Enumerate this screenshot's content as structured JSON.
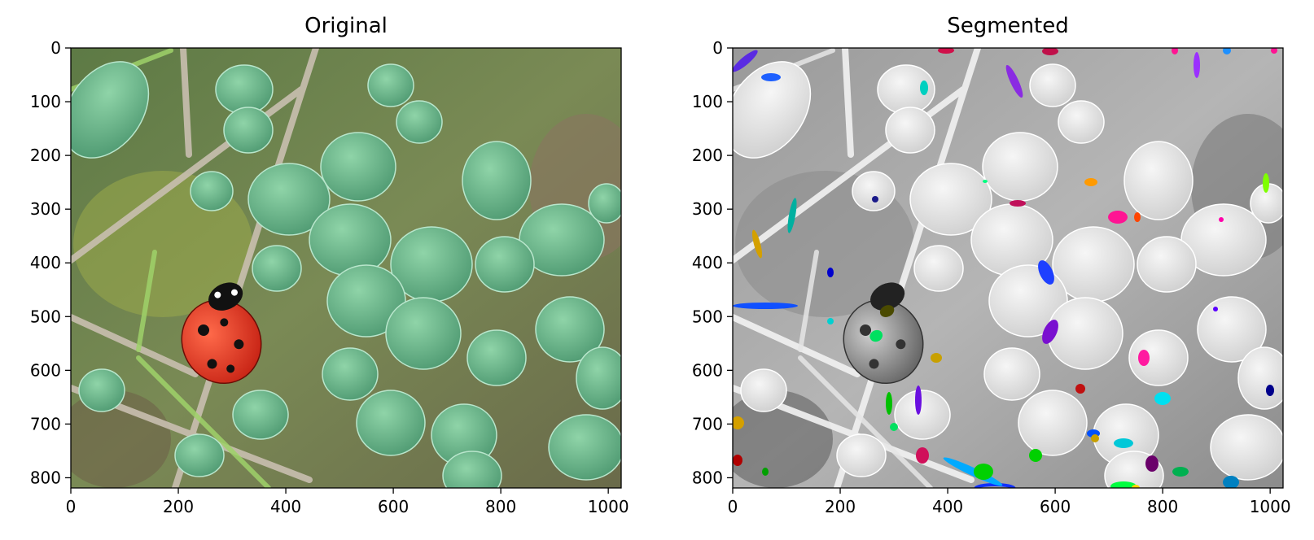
{
  "chart_data": [
    {
      "type": "image",
      "title": "Original",
      "xlabel": "",
      "ylabel": "",
      "xlim": [
        0,
        1024
      ],
      "ylim": [
        819,
        0
      ],
      "xticks": [
        0,
        200,
        400,
        600,
        800,
        1000
      ],
      "yticks": [
        0,
        100,
        200,
        300,
        400,
        500,
        600,
        700,
        800
      ],
      "xtick_labels": [
        "0",
        "200",
        "400",
        "600",
        "800",
        "1000"
      ],
      "ytick_labels": [
        "0",
        "100",
        "200",
        "300",
        "400",
        "500",
        "600",
        "700",
        "800"
      ],
      "content": "color photo of a red ladybug on a twig among green clover leaves",
      "grid": false
    },
    {
      "type": "image",
      "title": "Segmented",
      "xlabel": "",
      "ylabel": "",
      "xlim": [
        0,
        1024
      ],
      "ylim": [
        819,
        0
      ],
      "xticks": [
        0,
        200,
        400,
        600,
        800,
        1000
      ],
      "yticks": [
        0,
        100,
        200,
        300,
        400,
        500,
        600,
        700,
        800
      ],
      "xtick_labels": [
        "0",
        "200",
        "400",
        "600",
        "800",
        "1000"
      ],
      "ytick_labels": [
        "0",
        "100",
        "200",
        "300",
        "400",
        "500",
        "600",
        "700",
        "800"
      ],
      "content": "grayscale version of the photo with small segmented regions overlaid in random bright colors",
      "grid": false
    }
  ],
  "colors": {
    "ladybug_red": "#e0301e",
    "leaf_green": "#6fbf8f",
    "overlay": [
      "#8a2be2",
      "#1e60ff",
      "#00d0c0",
      "#ff1493",
      "#ffd700",
      "#00c040",
      "#ff4500",
      "#0000cd"
    ]
  }
}
